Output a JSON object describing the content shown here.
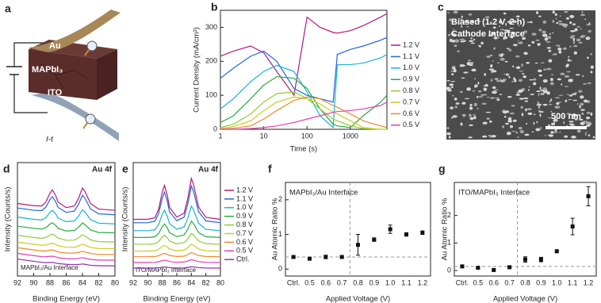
{
  "schematic": {
    "panel_label": "a",
    "labels": [
      "Au",
      "MAPbI₃",
      "ITO",
      "I-t"
    ]
  },
  "micrograph": {
    "panel_label": "c",
    "caption": [
      "Biased (1.2 V, 2 h)",
      "Cathode Interface"
    ],
    "scale_bar": "500 nm"
  },
  "chart_data": [
    {
      "type": "line",
      "panel_label": "b",
      "x_label": "Time (s)",
      "y_label": "Current Density (mA/cm²)",
      "annotations": [],
      "xlog": true,
      "xlim": [
        1,
        7000
      ],
      "xticks": [
        1,
        10,
        100,
        1000
      ],
      "ylim": [
        0,
        350
      ],
      "yticks": [
        0,
        100,
        200,
        300
      ],
      "x": [
        1,
        2,
        5,
        10,
        20,
        50,
        100,
        200,
        400,
        500,
        1000,
        2000,
        5000,
        7000
      ],
      "series": [
        {
          "name": "1.2 V",
          "color": "#b5197f",
          "values": [
            215,
            230,
            245,
            225,
            170,
            100,
            330,
            300,
            285,
            283,
            290,
            305,
            330,
            340
          ]
        },
        {
          "name": "1.1 V",
          "color": "#2166d9",
          "values": [
            150,
            180,
            215,
            230,
            200,
            120,
            100,
            90,
            80,
            220,
            235,
            245,
            262,
            270
          ]
        },
        {
          "name": "1.0 V",
          "color": "#16b4d6",
          "values": [
            60,
            90,
            140,
            170,
            188,
            170,
            110,
            40,
            5,
            190,
            190,
            195,
            210,
            220
          ]
        },
        {
          "name": "0.9 V",
          "color": "#25ad3f",
          "values": [
            20,
            40,
            90,
            130,
            155,
            150,
            120,
            60,
            15,
            10,
            5,
            40,
            80,
            100
          ]
        },
        {
          "name": "0.8 V",
          "color": "#8fce3a",
          "values": [
            5,
            15,
            45,
            80,
            105,
            110,
            90,
            60,
            30,
            25,
            10,
            2,
            0,
            0
          ]
        },
        {
          "name": "0.7 V",
          "color": "#c9cc1c",
          "values": [
            2,
            8,
            25,
            55,
            80,
            95,
            90,
            75,
            50,
            45,
            25,
            5,
            0,
            0
          ]
        },
        {
          "name": "0.6 V",
          "color": "#f0892a",
          "values": [
            0,
            3,
            10,
            30,
            55,
            85,
            95,
            90,
            70,
            65,
            45,
            25,
            10,
            5
          ]
        },
        {
          "name": "0.5 V",
          "color": "#e040b0",
          "values": [
            0,
            0,
            2,
            5,
            10,
            20,
            30,
            40,
            50,
            52,
            55,
            60,
            70,
            80
          ]
        }
      ]
    },
    {
      "type": "line",
      "panel_label": "d",
      "x_label": "Binding Energy (eV)",
      "y_label": "Intensity (Counts/s)",
      "annotations": [
        "Au 4f",
        "MAPbI₃/Au Interface"
      ],
      "xlim": [
        92,
        80
      ],
      "xticks": [
        92,
        90,
        88,
        86,
        84,
        82,
        80
      ],
      "ylim": [
        0,
        100
      ],
      "x": [
        92,
        90,
        89,
        88.5,
        88,
        87.7,
        87.3,
        87,
        86,
        85,
        84.5,
        84,
        83.7,
        83,
        82,
        80
      ],
      "series": [
        {
          "color": "#b5197f",
          "values": [
            64,
            62,
            61.8,
            65.3,
            73,
            76,
            71,
            65.2,
            60.3,
            61.7,
            68.2,
            77.6,
            74.6,
            63.9,
            59,
            58
          ]
        },
        {
          "color": "#2166d9",
          "values": [
            60,
            58,
            57.7,
            60.7,
            67.4,
            70,
            65.6,
            60.5,
            56.1,
            57.3,
            63,
            71.2,
            68.6,
            59.1,
            54.8,
            54
          ]
        },
        {
          "color": "#16b4d6",
          "values": [
            52,
            50,
            49.5,
            51.5,
            56.2,
            58,
            54.8,
            51.1,
            47.9,
            48.6,
            52.6,
            58.4,
            56.5,
            49.7,
            46.6,
            46
          ]
        },
        {
          "color": "#25ad3f",
          "values": [
            44,
            42,
            41.4,
            42.6,
            45.8,
            47,
            44.7,
            42.1,
            39.7,
            40.1,
            42.8,
            46.8,
            45.4,
            40.6,
            38.4,
            38
          ]
        },
        {
          "color": "#8fce3a",
          "values": [
            36,
            34,
            33.3,
            34,
            36.2,
            37,
            35.3,
            33.4,
            31.5,
            31.7,
            33.6,
            36.4,
            35.4,
            31.9,
            30.3,
            30
          ]
        },
        {
          "color": "#c9cc1c",
          "values": [
            30,
            28,
            27.2,
            27.4,
            28.6,
            29,
            27.9,
            26.7,
            25.4,
            25.3,
            26.4,
            28,
            27.4,
            25.2,
            24.2,
            24
          ]
        },
        {
          "color": "#f0892a",
          "values": [
            25,
            23,
            22.1,
            22.1,
            22.8,
            23,
            22.2,
            21.3,
            20.3,
            20.2,
            20.8,
            21.8,
            21.3,
            19.8,
            19.1,
            19
          ]
        },
        {
          "color": "#e040b0",
          "values": [
            20,
            18,
            17.1,
            17,
            17.4,
            17.5,
            16.9,
            16.1,
            15.3,
            15.1,
            15.5,
            16.2,
            15.8,
            14.6,
            14.1,
            14
          ]
        },
        {
          "color": "#8e2fb0",
          "values": [
            15,
            13,
            12.1,
            11.8,
            12,
            12,
            11.5,
            11,
            10.3,
            10,
            10.2,
            10.6,
            10.3,
            9.5,
            9.1,
            9
          ]
        }
      ]
    },
    {
      "type": "line",
      "panel_label": "e",
      "x_label": "Binding Energy (eV)",
      "y_label": "Intensity (Counts/s)",
      "annotations": [
        "Au 4f",
        "ITO/MAPbI₃ Interface"
      ],
      "xlim": [
        92,
        80
      ],
      "xticks": [
        92,
        90,
        88,
        86,
        84,
        82,
        80
      ],
      "ylim": [
        0,
        100
      ],
      "x": [
        92,
        90,
        89,
        88.5,
        88,
        87.7,
        87.3,
        87,
        86,
        85,
        84.5,
        84,
        83.7,
        83,
        82,
        80
      ],
      "series": [
        {
          "name": "1.2 V",
          "color": "#b5197f",
          "values": [
            50,
            50,
            51.5,
            59,
            74,
            80,
            71,
            60.5,
            52,
            55.4,
            68,
            86,
            80.6,
            60.8,
            51.8,
            50
          ]
        },
        {
          "name": "1.1 V",
          "color": "#2166d9",
          "values": [
            47,
            47,
            48.4,
            55.1,
            68.6,
            74,
            65.9,
            56.5,
            48.8,
            51.9,
            63.2,
            79.4,
            74.5,
            56.7,
            48.6,
            47
          ]
        },
        {
          "name": "1.0 V",
          "color": "#16b4d6",
          "values": [
            40,
            40,
            40.9,
            45.4,
            54.4,
            58,
            52.6,
            46.3,
            41.2,
            43.2,
            50.8,
            61.6,
            58.4,
            46.5,
            41.1,
            40
          ]
        },
        {
          "name": "0.9 V",
          "color": "#25ad3f",
          "values": [
            34,
            34,
            34.6,
            37.6,
            43.6,
            46,
            42.4,
            38.2,
            34.8,
            36.2,
            41.2,
            48.4,
            46.2,
            38.3,
            34.7,
            34
          ]
        },
        {
          "name": "0.8 V",
          "color": "#8fce3a",
          "values": [
            28,
            28,
            28.4,
            30.4,
            34.4,
            36,
            33.6,
            30.8,
            28.5,
            29.4,
            32.8,
            37.6,
            36.2,
            30.9,
            28.5,
            28
          ]
        },
        {
          "name": "0.7 V",
          "color": "#c9cc1c",
          "values": [
            22,
            22,
            22.3,
            23.5,
            26,
            27,
            25.5,
            23.8,
            22.3,
            22.9,
            25,
            28,
            27.1,
            23.8,
            22.3,
            22
          ]
        },
        {
          "name": "0.6 V",
          "color": "#f0892a",
          "values": [
            17,
            17,
            17.2,
            17.9,
            19.4,
            20,
            19.1,
            18.1,
            17.2,
            17.5,
            18.8,
            20.6,
            20.1,
            18.1,
            17.2,
            17
          ]
        },
        {
          "name": "0.5 V",
          "color": "#e040b0",
          "values": [
            12,
            12,
            12.1,
            12.6,
            13.6,
            14,
            13.4,
            12.7,
            12.1,
            12.4,
            13.2,
            14.4,
            14,
            12.7,
            12.1,
            12
          ]
        },
        {
          "name": "Ctrl.",
          "color": "#8e2fb0",
          "values": [
            7,
            7,
            7.1,
            7.3,
            7.8,
            8,
            7.7,
            7.4,
            7.1,
            7.2,
            7.6,
            8.2,
            8,
            7.4,
            7.1,
            7
          ]
        }
      ]
    },
    {
      "type": "scatter",
      "panel_label": "f",
      "x_label": "Applied Voltage (V)",
      "y_label": "Au Atomic Ratio %",
      "annotations": [
        "MAPbI₃/Au Interface"
      ],
      "categories": [
        "Ctrl.",
        "0.5",
        "0.6",
        "0.7",
        "0.8",
        "0.9",
        "1.0",
        "1.1",
        "1.2"
      ],
      "values": [
        0.35,
        0.3,
        0.35,
        0.35,
        0.7,
        0.85,
        1.15,
        1.0,
        1.05
      ],
      "errors": [
        0.03,
        0.03,
        0.05,
        0.03,
        0.3,
        0.05,
        0.12,
        0.05,
        0.05
      ],
      "color": "#111111",
      "reference_line": 0.35,
      "ylim": [
        -0.2,
        2.5
      ],
      "yticks": [
        0,
        1,
        2
      ]
    },
    {
      "type": "scatter",
      "panel_label": "g",
      "x_label": "Applied Voltage (V)",
      "y_label": "Au Atomic Ratio %",
      "annotations": [
        "ITO/MAPbI₃ Interface"
      ],
      "categories": [
        "Ctrl.",
        "0.5",
        "0.6",
        "0.7",
        "0.8",
        "0.9",
        "1.0",
        "1.1",
        "1.2"
      ],
      "values": [
        0.15,
        0.1,
        0.02,
        0.12,
        0.4,
        0.4,
        0.7,
        1.6,
        2.7
      ],
      "errors": [
        0.03,
        0.03,
        0.03,
        0.03,
        0.1,
        0.08,
        0.05,
        0.3,
        0.35
      ],
      "color": "#111111",
      "reference_line": 0.15,
      "ylim": [
        -0.2,
        3.2
      ],
      "yticks": [
        0,
        1,
        2
      ]
    }
  ]
}
